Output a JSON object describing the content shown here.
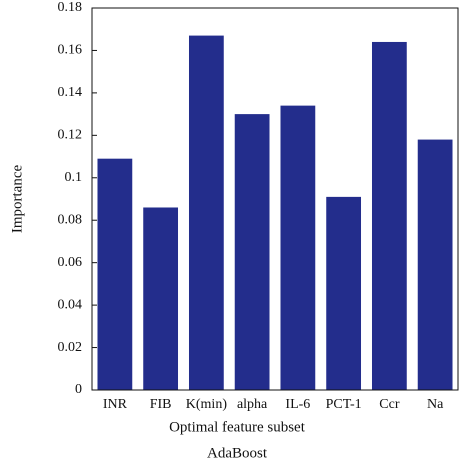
{
  "chart_data": {
    "type": "bar",
    "categories": [
      "INR",
      "FIB",
      "K(min)",
      "alpha",
      "IL-6",
      "PCT-1",
      "Ccr",
      "Na"
    ],
    "values": [
      0.109,
      0.086,
      0.167,
      0.13,
      0.134,
      0.091,
      0.164,
      0.118
    ],
    "color": "#232d8c",
    "ylim": [
      0,
      0.18
    ],
    "yticks": [
      0,
      0.02,
      0.04,
      0.06,
      0.08,
      0.1,
      0.12,
      0.14,
      0.16,
      0.18
    ],
    "y_label": "Importance",
    "x_label": "Optimal feature subset",
    "caption": "AdaBoost"
  }
}
